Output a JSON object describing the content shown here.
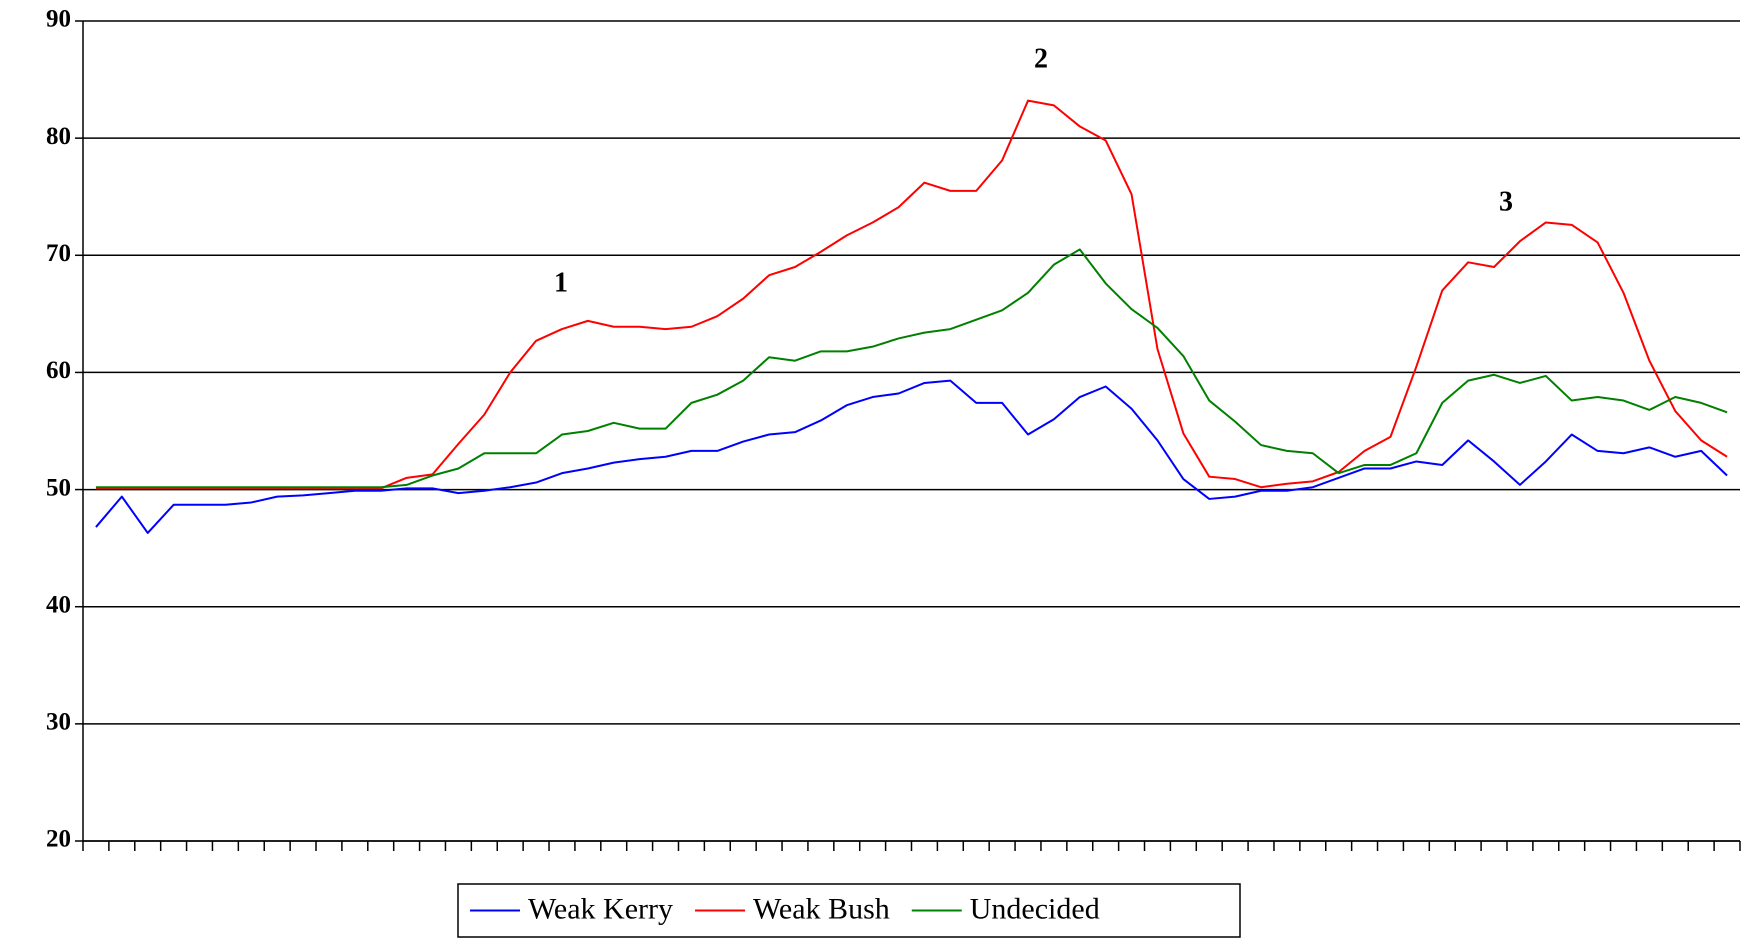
{
  "chart_data": {
    "type": "line",
    "categories": [
      null,
      null,
      null,
      null,
      null,
      null,
      null,
      null,
      null,
      null,
      null,
      null,
      null,
      null,
      null,
      null,
      null,
      null,
      null,
      null,
      null,
      null,
      null,
      null,
      null,
      null,
      null,
      null,
      null,
      null,
      null,
      null,
      null,
      null,
      null,
      null,
      null,
      null,
      null,
      null,
      null,
      null,
      null,
      null,
      null,
      null,
      null,
      null,
      null,
      null,
      null,
      null,
      null,
      null,
      null,
      null,
      null,
      null,
      null,
      null,
      null,
      null,
      null,
      null
    ],
    "series": [
      {
        "name": "Weak Kerry",
        "color": "#0000ff",
        "values": [
          46.8,
          49.4,
          46.3,
          48.7,
          48.7,
          48.7,
          48.9,
          49.4,
          49.5,
          49.7,
          49.9,
          49.9,
          50.1,
          50.1,
          49.7,
          49.9,
          50.2,
          50.6,
          51.4,
          51.8,
          52.3,
          52.6,
          52.8,
          53.3,
          53.3,
          54.1,
          54.7,
          54.9,
          55.9,
          57.2,
          57.9,
          58.2,
          59.1,
          59.3,
          57.4,
          57.4,
          54.7,
          56.0,
          57.9,
          58.8,
          56.9,
          54.2,
          50.9,
          49.2,
          49.4,
          49.9,
          49.9,
          50.2,
          51.0,
          51.8,
          51.8,
          52.4,
          52.1,
          54.2,
          52.4,
          50.4,
          52.4,
          54.7,
          53.3,
          53.1,
          53.6,
          52.8,
          53.3,
          51.2
        ]
      },
      {
        "name": "Weak Bush",
        "color": "#ff0000",
        "values": [
          50.1,
          50.1,
          50.1,
          50.1,
          50.1,
          50.1,
          50.1,
          50.1,
          50.1,
          50.1,
          50.1,
          50.1,
          51.0,
          51.3,
          53.9,
          56.4,
          60.0,
          62.7,
          63.7,
          64.4,
          63.9,
          63.9,
          63.7,
          63.9,
          64.8,
          66.3,
          68.3,
          69.0,
          70.3,
          71.7,
          72.8,
          74.1,
          76.2,
          75.5,
          75.5,
          78.1,
          83.2,
          82.8,
          81.0,
          79.8,
          75.2,
          62.0,
          54.8,
          51.1,
          50.9,
          50.2,
          50.5,
          50.7,
          51.5,
          53.3,
          54.5,
          60.5,
          67.0,
          69.4,
          69.0,
          71.2,
          72.8,
          72.6,
          71.1,
          66.8,
          61.0,
          56.7,
          54.2,
          52.8
        ]
      },
      {
        "name": "Undecided",
        "color": "#008000",
        "values": [
          50.2,
          50.2,
          50.2,
          50.2,
          50.2,
          50.2,
          50.2,
          50.2,
          50.2,
          50.2,
          50.2,
          50.2,
          50.4,
          51.2,
          51.8,
          53.1,
          53.1,
          53.1,
          54.7,
          55.0,
          55.7,
          55.2,
          55.2,
          57.4,
          58.1,
          59.3,
          61.3,
          61.0,
          61.8,
          61.8,
          62.2,
          62.9,
          63.4,
          63.7,
          64.5,
          65.3,
          66.8,
          69.2,
          70.5,
          67.6,
          65.4,
          63.8,
          61.4,
          57.6,
          55.8,
          53.8,
          53.3,
          53.1,
          51.4,
          52.1,
          52.1,
          53.1,
          57.4,
          59.3,
          59.8,
          59.1,
          59.7,
          57.6,
          57.9,
          57.6,
          56.8,
          57.9,
          57.4,
          56.6
        ]
      }
    ],
    "ylim": [
      20,
      90
    ],
    "yticks": [
      20,
      30,
      40,
      50,
      60,
      70,
      80,
      90
    ],
    "grid": true,
    "legend": "bottom",
    "annotations": [
      "1",
      "2",
      "3"
    ]
  }
}
